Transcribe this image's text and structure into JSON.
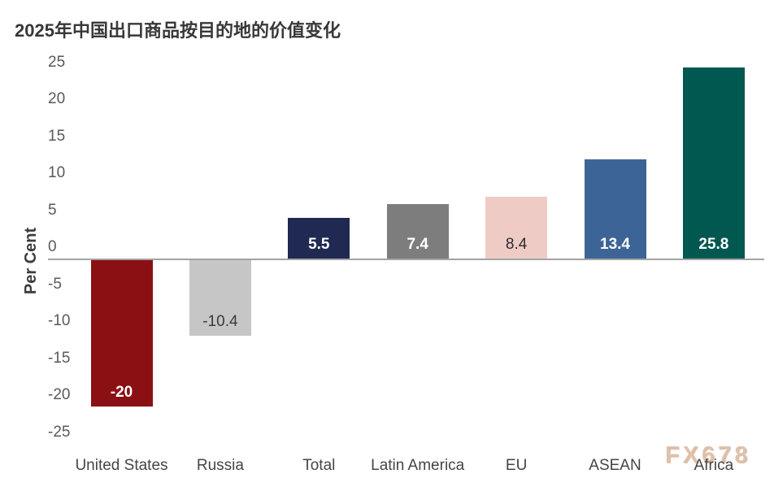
{
  "title": "2025年中国出口商品按目的地的价值变化",
  "watermark": "FX678",
  "colors": {
    "title_text": "#383838",
    "axis_line": "#a3a3a3",
    "tick_text": "#595959",
    "category_text": "#454545",
    "watermark_text": "#d9b79e",
    "background": "#ffffff"
  },
  "chart_data": {
    "type": "bar",
    "title": "2025年中国出口商品按目的地的价值变化",
    "xlabel": "",
    "ylabel": "Per Cent",
    "ylim": [
      -25,
      25
    ],
    "ytick_step": 5,
    "yticks": [
      25,
      20,
      15,
      10,
      5,
      0,
      -5,
      -10,
      -15,
      -20,
      -25
    ],
    "grid": false,
    "legend": null,
    "categories": [
      "United States",
      "Russia",
      "Total",
      "Latin America",
      "EU",
      "ASEAN",
      "Africa"
    ],
    "values": [
      -20,
      -10.4,
      5.5,
      7.4,
      8.4,
      13.4,
      25.8
    ],
    "value_labels": [
      "-20",
      "-10.4",
      "5.5",
      "7.4",
      "8.4",
      "13.4",
      "25.8"
    ],
    "bar_colors": [
      "#8b1014",
      "#c6c6c6",
      "#1f2951",
      "#7d7d7d",
      "#efcbc6",
      "#3d6497",
      "#015851"
    ],
    "value_label_colors": [
      "#ffffff",
      "#3a3a3a",
      "#ffffff",
      "#ffffff",
      "#2b2b2b",
      "#ffffff",
      "#ffffff"
    ]
  }
}
